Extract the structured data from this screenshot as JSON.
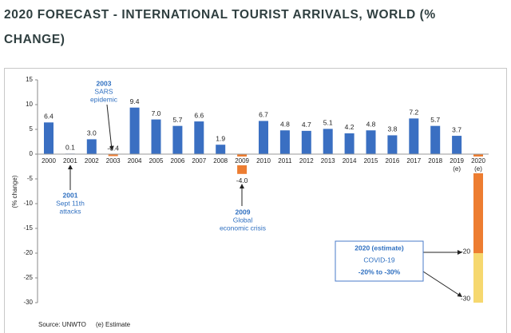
{
  "chart_data": {
    "type": "bar",
    "title": "2020 FORECAST - INTERNATIONAL TOURIST ARRIVALS, WORLD (% CHANGE)",
    "y_label": "(% change)",
    "categories": [
      "2000",
      "2001",
      "2002",
      "2003",
      "2004",
      "2005",
      "2006",
      "2007",
      "2008",
      "2009",
      "2010",
      "2011",
      "2012",
      "2013",
      "2014",
      "2015",
      "2016",
      "2017",
      "2018",
      "2019",
      "2020"
    ],
    "category_notes": [
      null,
      null,
      null,
      null,
      null,
      null,
      null,
      null,
      null,
      null,
      null,
      null,
      null,
      null,
      null,
      null,
      null,
      null,
      null,
      "(e)",
      "(e)"
    ],
    "values": [
      6.4,
      0.1,
      3.0,
      -0.4,
      9.4,
      7.0,
      5.7,
      6.6,
      1.9,
      -4.0,
      6.7,
      4.8,
      4.7,
      5.1,
      4.2,
      4.8,
      3.8,
      7.2,
      5.7,
      3.7,
      null
    ],
    "value_labels": [
      "6.4",
      "0.1",
      "3.0",
      "-0.4",
      "9.4",
      "7.0",
      "5.7",
      "6.6",
      "1.9",
      "-4.0",
      "6.7",
      "4.8",
      "4.7",
      "5.1",
      "4.2",
      "4.8",
      "3.8",
      "7.2",
      "5.7",
      "3.7",
      null
    ],
    "color": "#3a6fc2",
    "forecast": {
      "high": -20,
      "low": -30,
      "high_color": "#ed7d31",
      "low_color": "#f6d86f"
    },
    "ylim": [
      -30,
      15
    ],
    "yticks": [
      15,
      10,
      5,
      0,
      -5,
      -10,
      -15,
      -20,
      -25,
      -30
    ],
    "annotations": [
      {
        "lines": [
          "2003",
          "SARS",
          "epidemic"
        ]
      },
      {
        "lines": [
          "2001",
          "Sept 11th",
          "attacks"
        ]
      },
      {
        "lines": [
          "2009",
          "Global",
          "economic crisis"
        ]
      },
      {
        "lines": [
          "2020 (estimate)",
          "COVID-19",
          "-20% to -30%"
        ]
      }
    ],
    "source": "Source: UNWTO",
    "note": "(e) Estimate"
  }
}
